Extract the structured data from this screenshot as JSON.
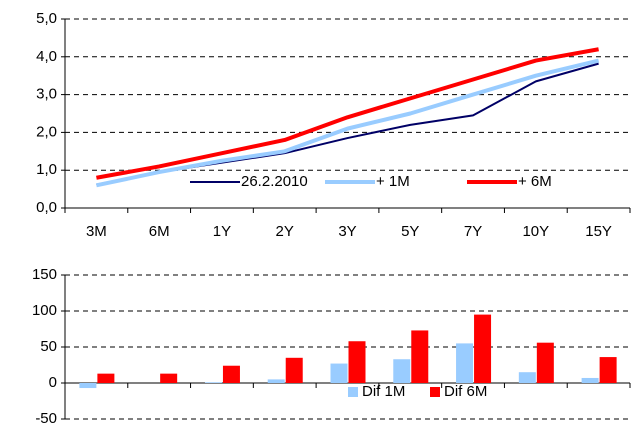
{
  "chart_data": [
    {
      "type": "line",
      "categories": [
        "3M",
        "6M",
        "1Y",
        "2Y",
        "3Y",
        "5Y",
        "7Y",
        "10Y",
        "15Y"
      ],
      "series": [
        {
          "name": "26.2.2010",
          "color": "#000066",
          "values": [
            0.62,
            0.95,
            1.2,
            1.45,
            1.85,
            2.2,
            2.45,
            3.35,
            3.82
          ]
        },
        {
          "name": "+ 1M",
          "color": "#99ccff",
          "values": [
            0.6,
            0.95,
            1.25,
            1.5,
            2.1,
            2.5,
            3.0,
            3.5,
            3.9
          ]
        },
        {
          "name": "+ 6M",
          "color": "#ff0000",
          "values": [
            0.8,
            1.1,
            1.45,
            1.8,
            2.4,
            2.9,
            3.4,
            3.9,
            4.2
          ]
        }
      ],
      "ylim": [
        0,
        5
      ],
      "yticks": [
        {
          "value": 0,
          "label": "0,0"
        },
        {
          "value": 1,
          "label": "1,0"
        },
        {
          "value": 2,
          "label": "2,0"
        },
        {
          "value": 3,
          "label": "3,0"
        },
        {
          "value": 4,
          "label": "4,0"
        },
        {
          "value": 5,
          "label": "5,0"
        }
      ],
      "grid": true
    },
    {
      "type": "bar",
      "categories": [
        "3M",
        "6M",
        "1Y",
        "2Y",
        "3Y",
        "5Y",
        "7Y",
        "10Y",
        "15Y"
      ],
      "series": [
        {
          "name": "Dif 1M",
          "color": "#99ccff",
          "values": [
            -7,
            0,
            1,
            5,
            27,
            33,
            55,
            15,
            7
          ]
        },
        {
          "name": "Dif 6M",
          "color": "#ff0000",
          "values": [
            13,
            13,
            24,
            35,
            58,
            73,
            95,
            56,
            36
          ]
        }
      ],
      "ylim": [
        -50,
        150
      ],
      "yticks": [
        -50,
        0,
        50,
        100,
        150
      ],
      "grid": true
    }
  ]
}
